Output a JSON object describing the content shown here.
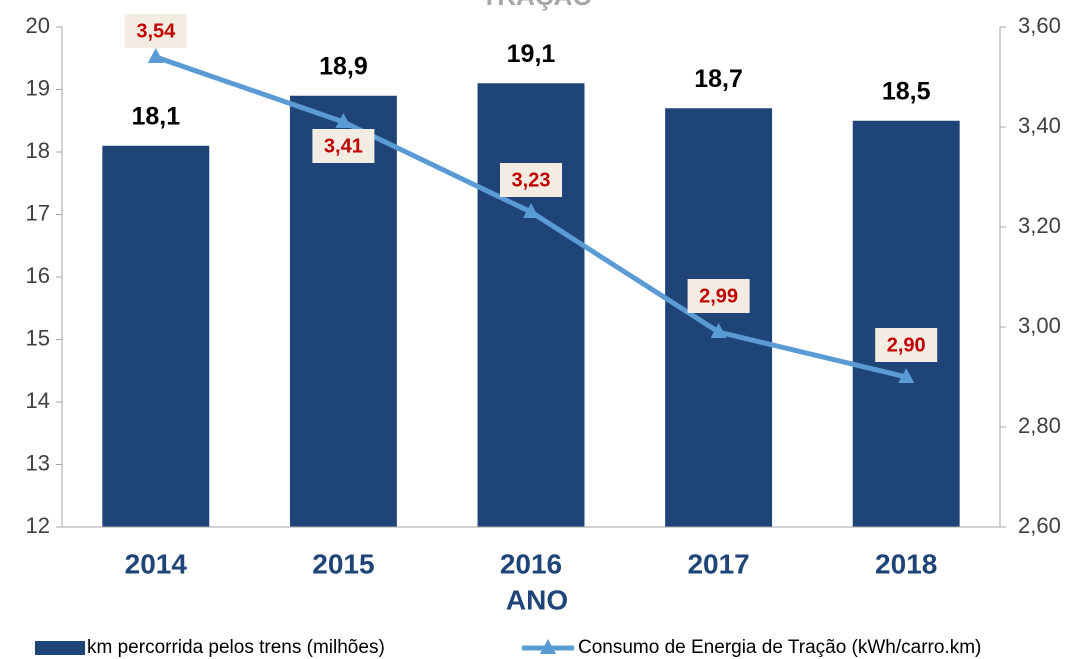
{
  "chart_data": {
    "type": "bar_line",
    "title": "TRAÇÃO",
    "x_label": "ANO",
    "categories": [
      "2014",
      "2015",
      "2016",
      "2017",
      "2018"
    ],
    "series": [
      {
        "name": "km percorrida pelos trens (milhões)",
        "color": "#1f4478",
        "type": "bar",
        "values": [
          18.1,
          18.9,
          19.1,
          18.7,
          18.5
        ],
        "value_labels": [
          "18,1",
          "18,9",
          "19,1",
          "18,7",
          "18,5"
        ]
      },
      {
        "name": "Consumo de Energia de Tração (kWh/carro.km)",
        "color": "#5b9bd5",
        "type": "line",
        "axis": "y2",
        "values": [
          3.54,
          3.41,
          3.23,
          2.99,
          2.9
        ],
        "value_labels": [
          "3,54",
          "3,41",
          "3,23",
          "2,99",
          "2,90"
        ]
      }
    ],
    "ylim": [
      12,
      20
    ],
    "yticks": [
      12,
      13,
      14,
      15,
      16,
      17,
      18,
      19,
      20
    ],
    "y2lim": [
      2.6,
      3.6
    ],
    "y2ticks": [
      {
        "value": 2.6,
        "label": "2,60"
      },
      {
        "value": 2.8,
        "label": "2,80"
      },
      {
        "value": 3.0,
        "label": "3,00"
      },
      {
        "value": 3.2,
        "label": "3,20"
      },
      {
        "value": 3.4,
        "label": "3,40"
      },
      {
        "value": 3.6,
        "label": "3,60"
      }
    ],
    "legend": "bottom"
  }
}
